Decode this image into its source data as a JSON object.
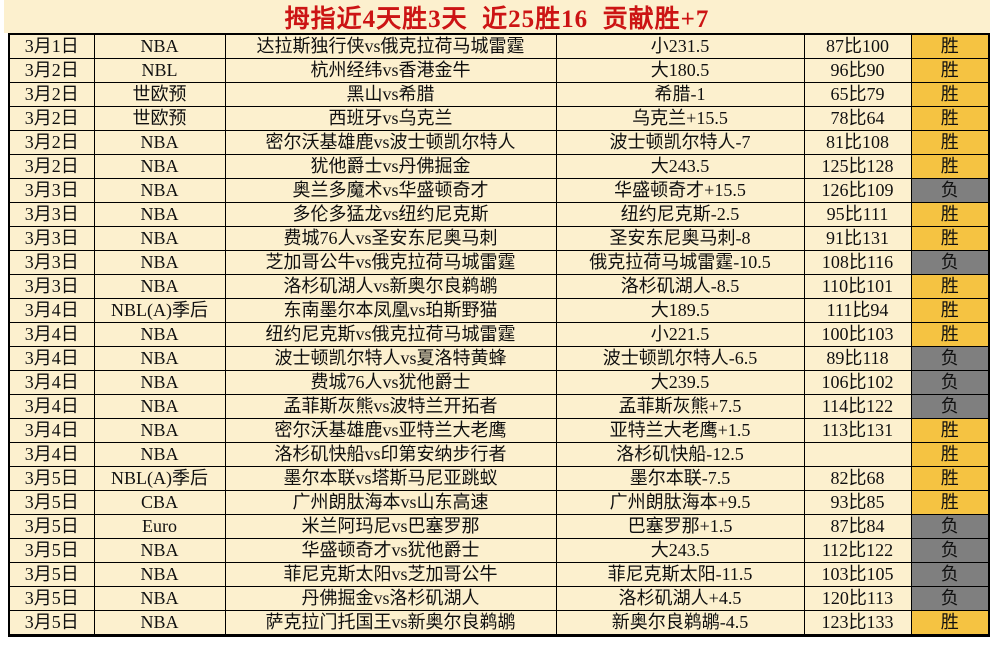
{
  "title": "拇指近4天胜3天  近25胜16  贡献胜+7",
  "legend": {
    "win": "胜",
    "loss": "负"
  },
  "colors": {
    "title_red": "#cc1414",
    "cell_cream": "#fcf0ce",
    "win_gold": "#f5c342",
    "loss_grey": "#7f7f7f",
    "border_black": "#000000"
  },
  "rows": [
    {
      "date": "3月1日",
      "league": "NBA",
      "match": "达拉斯独行侠vs俄克拉荷马城雷霆",
      "pick": "小231.5",
      "score": "87比100",
      "result": "胜"
    },
    {
      "date": "3月2日",
      "league": "NBL",
      "match": "杭州经纬vs香港金牛",
      "pick": "大180.5",
      "score": "96比90",
      "result": "胜"
    },
    {
      "date": "3月2日",
      "league": "世欧预",
      "match": "黑山vs希腊",
      "pick": "希腊-1",
      "score": "65比79",
      "result": "胜"
    },
    {
      "date": "3月2日",
      "league": "世欧预",
      "match": "西班牙vs乌克兰",
      "pick": "乌克兰+15.5",
      "score": "78比64",
      "result": "胜"
    },
    {
      "date": "3月2日",
      "league": "NBA",
      "match": "密尔沃基雄鹿vs波士顿凯尔特人",
      "pick": "波士顿凯尔特人-7",
      "score": "81比108",
      "result": "胜"
    },
    {
      "date": "3月2日",
      "league": "NBA",
      "match": "犹他爵士vs丹佛掘金",
      "pick": "大243.5",
      "score": "125比128",
      "result": "胜"
    },
    {
      "date": "3月3日",
      "league": "NBA",
      "match": "奥兰多魔术vs华盛顿奇才",
      "pick": "华盛顿奇才+15.5",
      "score": "126比109",
      "result": "负"
    },
    {
      "date": "3月3日",
      "league": "NBA",
      "match": "多伦多猛龙vs纽约尼克斯",
      "pick": "纽约尼克斯-2.5",
      "score": "95比111",
      "result": "胜"
    },
    {
      "date": "3月3日",
      "league": "NBA",
      "match": "费城76人vs圣安东尼奥马刺",
      "pick": "圣安东尼奥马刺-8",
      "score": "91比131",
      "result": "胜"
    },
    {
      "date": "3月3日",
      "league": "NBA",
      "match": "芝加哥公牛vs俄克拉荷马城雷霆",
      "pick": "俄克拉荷马城雷霆-10.5",
      "score": "108比116",
      "result": "负"
    },
    {
      "date": "3月3日",
      "league": "NBA",
      "match": "洛杉矶湖人vs新奥尔良鹈鹕",
      "pick": "洛杉矶湖人-8.5",
      "score": "110比101",
      "result": "胜"
    },
    {
      "date": "3月4日",
      "league": "NBL(A)季后",
      "match": "东南墨尔本凤凰vs珀斯野猫",
      "pick": "大189.5",
      "score": "111比94",
      "result": "胜"
    },
    {
      "date": "3月4日",
      "league": "NBA",
      "match": "纽约尼克斯vs俄克拉荷马城雷霆",
      "pick": "小221.5",
      "score": "100比103",
      "result": "胜"
    },
    {
      "date": "3月4日",
      "league": "NBA",
      "match": "波士顿凯尔特人vs夏洛特黄蜂",
      "pick": "波士顿凯尔特人-6.5",
      "score": "89比118",
      "result": "负"
    },
    {
      "date": "3月4日",
      "league": "NBA",
      "match": "费城76人vs犹他爵士",
      "pick": "大239.5",
      "score": "106比102",
      "result": "负"
    },
    {
      "date": "3月4日",
      "league": "NBA",
      "match": "孟菲斯灰熊vs波特兰开拓者",
      "pick": "孟菲斯灰熊+7.5",
      "score": "114比122",
      "result": "负"
    },
    {
      "date": "3月4日",
      "league": "NBA",
      "match": "密尔沃基雄鹿vs亚特兰大老鹰",
      "pick": "亚特兰大老鹰+1.5",
      "score": "113比131",
      "result": "胜"
    },
    {
      "date": "3月4日",
      "league": "NBA",
      "match": "洛杉矶快船vs印第安纳步行者",
      "pick": "洛杉矶快船-12.5",
      "score": "",
      "result": "胜"
    },
    {
      "date": "3月5日",
      "league": "NBL(A)季后",
      "match": "墨尔本联vs塔斯马尼亚跳蚁",
      "pick": "墨尔本联-7.5",
      "score": "82比68",
      "result": "胜"
    },
    {
      "date": "3月5日",
      "league": "CBA",
      "match": "广州朗肽海本vs山东高速",
      "pick": "广州朗肽海本+9.5",
      "score": "93比85",
      "result": "胜"
    },
    {
      "date": "3月5日",
      "league": "Euro",
      "match": "米兰阿玛尼vs巴塞罗那",
      "pick": "巴塞罗那+1.5",
      "score": "87比84",
      "result": "负"
    },
    {
      "date": "3月5日",
      "league": "NBA",
      "match": "华盛顿奇才vs犹他爵士",
      "pick": "大243.5",
      "score": "112比122",
      "result": "负"
    },
    {
      "date": "3月5日",
      "league": "NBA",
      "match": "菲尼克斯太阳vs芝加哥公牛",
      "pick": "菲尼克斯太阳-11.5",
      "score": "103比105",
      "result": "负"
    },
    {
      "date": "3月5日",
      "league": "NBA",
      "match": "丹佛掘金vs洛杉矶湖人",
      "pick": "洛杉矶湖人+4.5",
      "score": "120比113",
      "result": "负"
    },
    {
      "date": "3月5日",
      "league": "NBA",
      "match": "萨克拉门托国王vs新奥尔良鹈鹕",
      "pick": "新奥尔良鹈鹕-4.5",
      "score": "123比133",
      "result": "胜"
    }
  ]
}
